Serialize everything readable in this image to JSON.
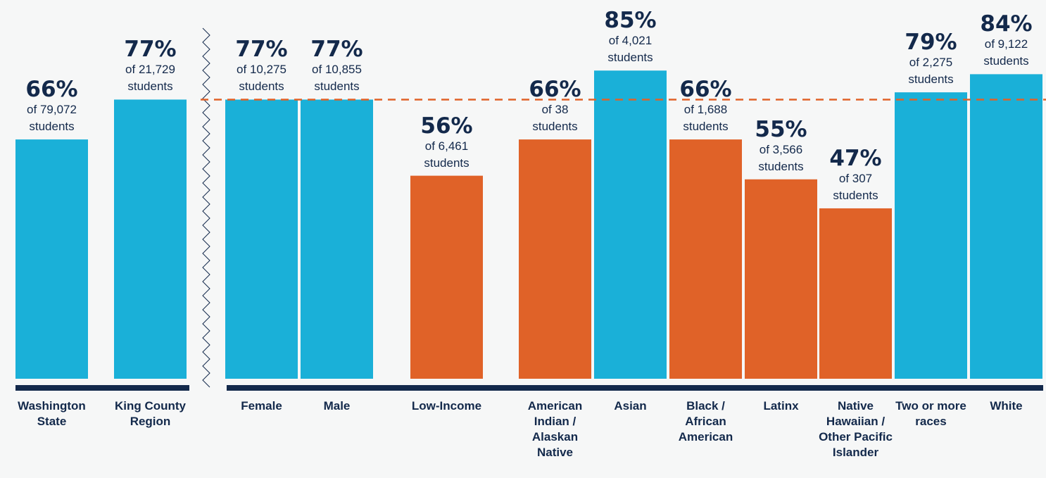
{
  "chart_data": {
    "type": "bar",
    "categories": [
      "Washington State",
      "King County Region",
      "Female",
      "Male",
      "Low-Income",
      "American Indian / Alaskan Native",
      "Asian",
      "Black / African American",
      "Latinx",
      "Native Hawaiian / Other Pacific Islander",
      "Two or more races",
      "White"
    ],
    "values": [
      66,
      77,
      77,
      77,
      56,
      66,
      85,
      66,
      55,
      47,
      79,
      84
    ],
    "value_labels": [
      "66%",
      "77%",
      "77%",
      "77%",
      "56%",
      "66%",
      "85%",
      "66%",
      "55%",
      "47%",
      "79%",
      "84%"
    ],
    "notes": [
      "of 79,072 students",
      "of 21,729 students",
      "of 10,275 students",
      "of 10,855 students",
      "of 6,461 students",
      "of 38 students",
      "of 4,021 students",
      "of 1,688 students",
      "of 3,566 students",
      "of 307 students",
      "of 2,275 students",
      "of 9,122 students"
    ],
    "colors": [
      "#1ab0d8",
      "#1ab0d8",
      "#1ab0d8",
      "#1ab0d8",
      "#e06228",
      "#e06228",
      "#1ab0d8",
      "#e06228",
      "#e06228",
      "#e06228",
      "#1ab0d8",
      "#1ab0d8"
    ],
    "reference_color": "#e06228",
    "ylim": [
      0,
      100
    ]
  }
}
